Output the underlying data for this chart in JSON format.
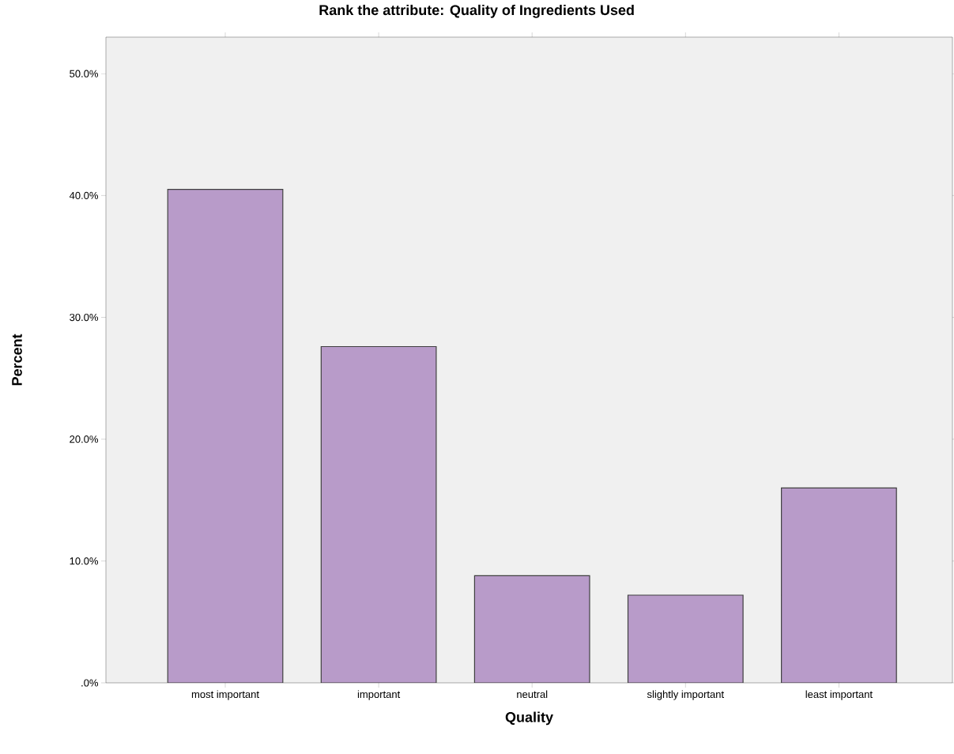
{
  "chart_data": {
    "type": "bar",
    "title": "Rank the attribute: Quality of Ingredients Used",
    "xlabel": "Quality",
    "ylabel": "Percent",
    "categories": [
      "most important",
      "important",
      "neutral",
      "slightly important",
      "least important"
    ],
    "values": [
      40.5,
      27.6,
      8.8,
      7.2,
      16.0
    ],
    "color": "#b89bc9",
    "ylim": [
      0,
      53
    ],
    "yticks": [
      {
        "value": 0,
        "label": ".0%"
      },
      {
        "value": 10,
        "label": "10.0%"
      },
      {
        "value": 20,
        "label": "20.0%"
      },
      {
        "value": 30,
        "label": "30.0%"
      },
      {
        "value": 40,
        "label": "40.0%"
      },
      {
        "value": 50,
        "label": "50.0%"
      }
    ]
  }
}
